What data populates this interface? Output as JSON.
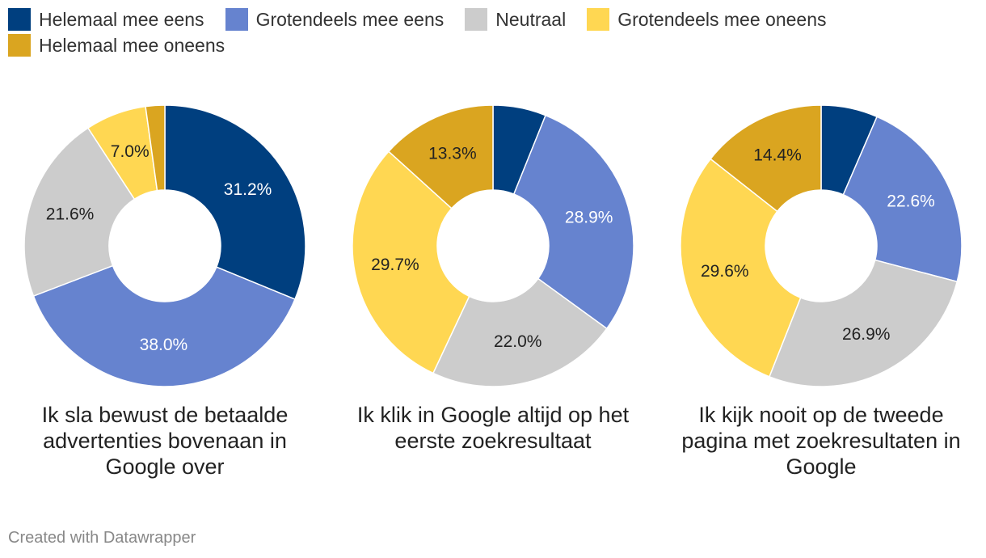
{
  "chart_data": {
    "type": "pie",
    "legend": [
      "Helemaal mee eens",
      "Grotendeels mee eens",
      "Neutraal",
      "Grotendeels mee oneens",
      "Helemaal mee oneens"
    ],
    "colors": [
      "#003f7f",
      "#6683cf",
      "#cccccc",
      "#ffd752",
      "#daa520"
    ],
    "charts": [
      {
        "title": "Ik sla bewust de betaalde advertenties bovenaan in Google over",
        "values": [
          31.2,
          38.0,
          21.6,
          7.0,
          2.2
        ],
        "labels": [
          "31.2%",
          "38.0%",
          "21.6%",
          "7.0%",
          ""
        ]
      },
      {
        "title": "Ik klik in Google altijd op het eerste zoekresultaat",
        "values": [
          6.1,
          28.9,
          22.0,
          29.7,
          13.3
        ],
        "labels": [
          "",
          "28.9%",
          "22.0%",
          "29.7%",
          "13.3%"
        ]
      },
      {
        "title": "Ik kijk nooit op de tweede pagina met zoekresultaten in Google",
        "values": [
          6.5,
          22.6,
          26.9,
          29.6,
          14.4
        ],
        "labels": [
          "",
          "22.6%",
          "26.9%",
          "29.6%",
          "14.4%"
        ]
      }
    ],
    "legend_position": "top-left"
  },
  "footer": {
    "credit": "Created with Datawrapper"
  }
}
